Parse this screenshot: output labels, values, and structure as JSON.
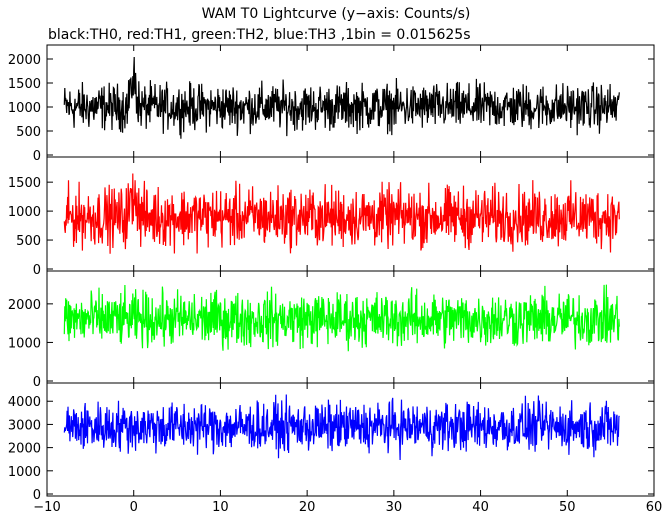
{
  "title": "WAM T0 Lightcurve (y−axis: Counts/s)",
  "subtitle": "black:TH0, red:TH1, green:TH2, blue:TH3 ,1bin = 0.015625s",
  "chart_data": {
    "type": "line",
    "x_ticks": [
      "−10",
      "0",
      "10",
      "20",
      "30",
      "40",
      "50",
      "60"
    ],
    "x_tick_values": [
      -10,
      0,
      10,
      20,
      30,
      40,
      50,
      60
    ],
    "xlim": [
      -10,
      60
    ],
    "x_data_range": [
      -8,
      56
    ],
    "bin_seconds": 0.015625,
    "panels": [
      {
        "name": "TH0",
        "color": "#000000",
        "ylim": [
          0,
          2250
        ],
        "y_ticks": [
          "0",
          "500",
          "1000",
          "1500",
          "2000"
        ],
        "y_tick_values": [
          0,
          500,
          1000,
          1500,
          2000
        ],
        "mean": 1000,
        "low": 300,
        "high": 1700,
        "flare_at": 0,
        "flare_peak": 2250
      },
      {
        "name": "TH1",
        "color": "#ff0000",
        "ylim": [
          0,
          1900
        ],
        "y_ticks": [
          "0",
          "500",
          "1000",
          "1500"
        ],
        "y_tick_values": [
          0,
          500,
          1000,
          1500
        ],
        "mean": 900,
        "low": 200,
        "high": 1700,
        "flare_at": 0,
        "flare_peak": 1900
      },
      {
        "name": "TH2",
        "color": "#00ff00",
        "ylim": [
          0,
          2800
        ],
        "y_ticks": [
          "0",
          "1000",
          "2000"
        ],
        "y_tick_values": [
          0,
          1000,
          2000
        ],
        "mean": 1600,
        "low": 600,
        "high": 2650
      },
      {
        "name": "TH3",
        "color": "#0000ff",
        "ylim": [
          0,
          4700
        ],
        "y_ticks": [
          "0",
          "1000",
          "2000",
          "3000",
          "4000"
        ],
        "y_tick_values": [
          0,
          1000,
          2000,
          3000,
          4000
        ],
        "mean": 2900,
        "low": 1300,
        "high": 4400
      }
    ]
  }
}
